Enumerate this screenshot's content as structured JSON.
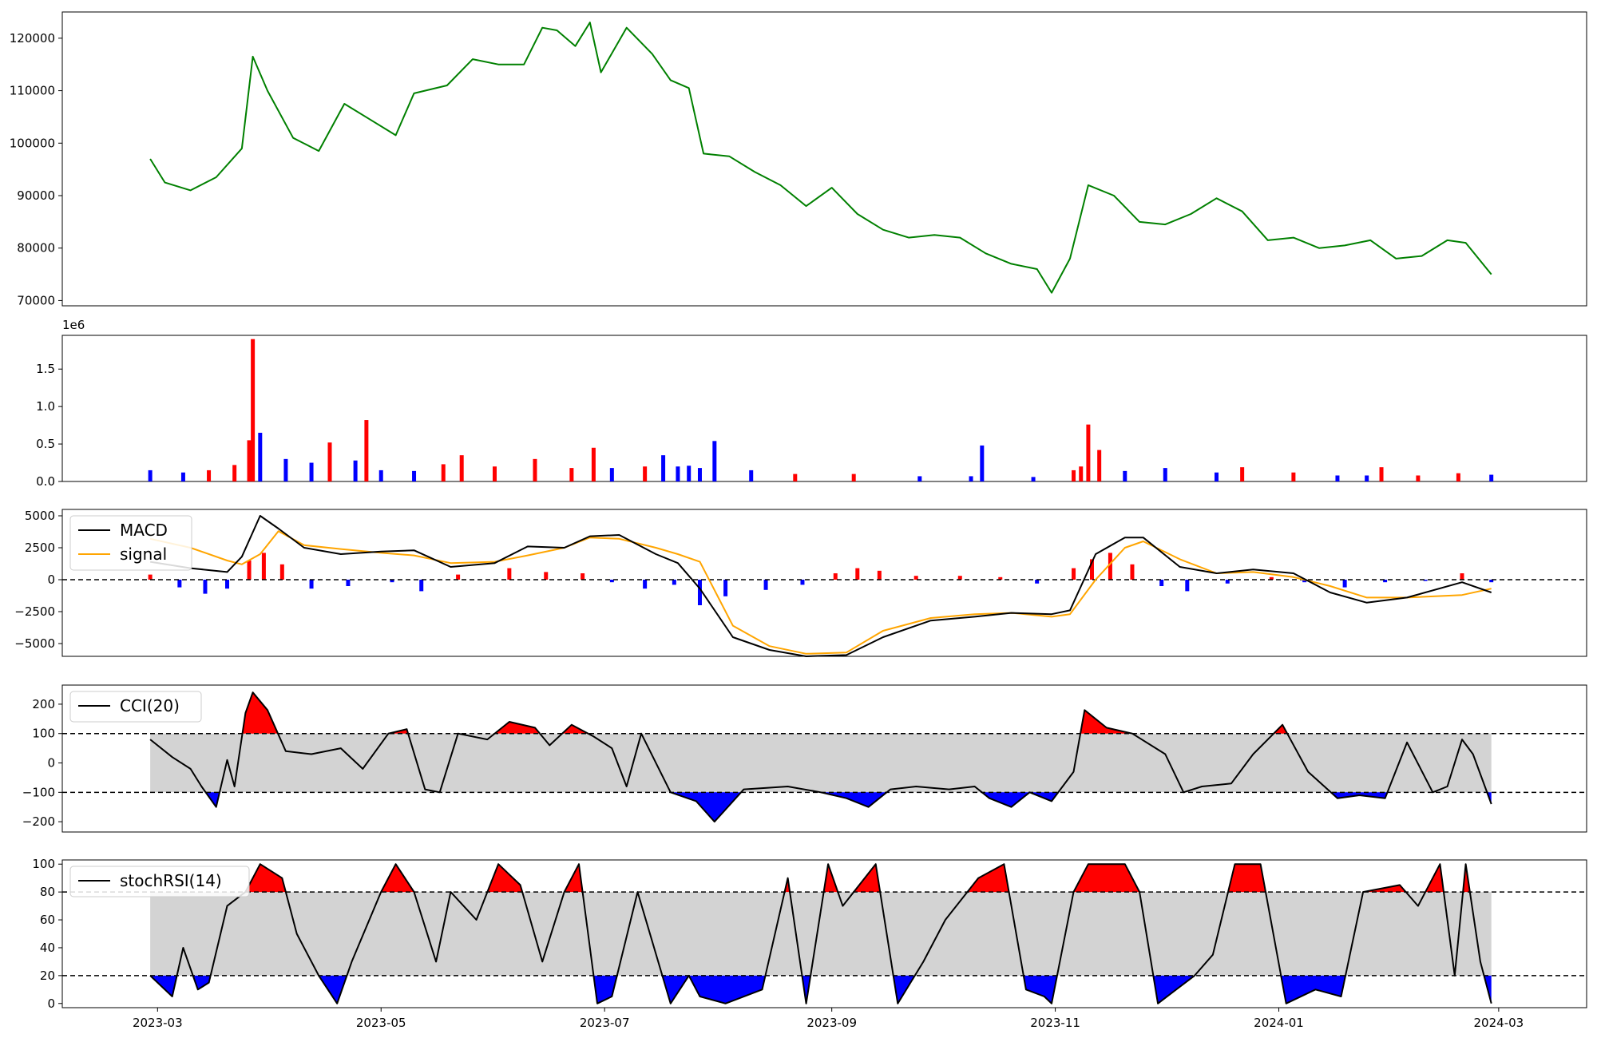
{
  "chart_data": [
    {
      "panel": "price",
      "type": "line",
      "color": "#008000",
      "ylim": [
        69000,
        125000
      ],
      "yticks": [
        70000,
        80000,
        90000,
        100000,
        110000,
        120000
      ],
      "ytick_labels": [
        "70000",
        "80000",
        "90000",
        "100000",
        "110000",
        "120000"
      ],
      "series": [
        {
          "x": [
            "2023-02-27",
            "2023-03-03",
            "2023-03-10",
            "2023-03-17",
            "2023-03-24",
            "2023-03-27",
            "2023-03-31",
            "2023-04-07",
            "2023-04-14",
            "2023-04-21",
            "2023-04-28",
            "2023-05-05",
            "2023-05-10",
            "2023-05-19",
            "2023-05-26",
            "2023-06-02",
            "2023-06-09",
            "2023-06-14",
            "2023-06-18",
            "2023-06-23",
            "2023-06-27",
            "2023-06-30",
            "2023-07-07",
            "2023-07-14",
            "2023-07-19",
            "2023-07-24",
            "2023-07-28",
            "2023-08-04",
            "2023-08-11",
            "2023-08-18",
            "2023-08-25",
            "2023-09-01",
            "2023-09-08",
            "2023-09-15",
            "2023-09-22",
            "2023-09-29",
            "2023-10-06",
            "2023-10-13",
            "2023-10-20",
            "2023-10-27",
            "2023-10-31",
            "2023-11-05",
            "2023-11-10",
            "2023-11-17",
            "2023-11-24",
            "2023-12-01",
            "2023-12-08",
            "2023-12-15",
            "2023-12-22",
            "2023-12-29",
            "2024-01-05",
            "2024-01-12",
            "2024-01-19",
            "2024-01-26",
            "2024-02-02",
            "2024-02-09",
            "2024-02-16",
            "2024-02-21",
            "2024-02-28"
          ],
          "y": [
            97000,
            92500,
            91000,
            93500,
            99000,
            116500,
            110000,
            101000,
            98500,
            107500,
            104500,
            101500,
            109500,
            111000,
            116000,
            115000,
            115000,
            122000,
            121500,
            118500,
            123000,
            113500,
            122000,
            117000,
            112000,
            110500,
            98000,
            97500,
            94500,
            92000,
            88000,
            91500,
            86500,
            83500,
            82000,
            82500,
            82000,
            79000,
            77000,
            76000,
            71500,
            78000,
            92000,
            90000,
            85000,
            84500,
            86500,
            89500,
            87000,
            81500,
            82000,
            80000,
            80500,
            81500,
            78000,
            78500,
            81500,
            81000,
            75000
          ]
        }
      ]
    },
    {
      "panel": "volume",
      "type": "bar",
      "offset_label": "1e6",
      "up_color": "#ff0000",
      "down_color": "#0000ff",
      "ylim": [
        0,
        1950000
      ],
      "yticks": [
        0,
        500000,
        1000000,
        1500000
      ],
      "ytick_labels": [
        "0.0",
        "0.5",
        "1.0",
        "1.5"
      ],
      "series": [
        {
          "x": [
            "2023-02-27",
            "2023-03-08",
            "2023-03-15",
            "2023-03-22",
            "2023-03-26",
            "2023-03-27",
            "2023-03-29",
            "2023-04-05",
            "2023-04-12",
            "2023-04-17",
            "2023-04-24",
            "2023-04-27",
            "2023-05-01",
            "2023-05-10",
            "2023-05-18",
            "2023-05-23",
            "2023-06-01",
            "2023-06-12",
            "2023-06-22",
            "2023-06-28",
            "2023-07-03",
            "2023-07-12",
            "2023-07-17",
            "2023-07-21",
            "2023-07-24",
            "2023-07-27",
            "2023-07-31",
            "2023-08-10",
            "2023-08-22",
            "2023-09-07",
            "2023-09-25",
            "2023-10-09",
            "2023-10-12",
            "2023-10-26",
            "2023-11-06",
            "2023-11-08",
            "2023-11-10",
            "2023-11-13",
            "2023-11-20",
            "2023-12-01",
            "2023-12-15",
            "2023-12-22",
            "2024-01-05",
            "2024-01-17",
            "2024-01-25",
            "2024-01-29",
            "2024-02-08",
            "2024-02-19",
            "2024-02-28"
          ],
          "values": [
            150000,
            120000,
            150000,
            220000,
            550000,
            1900000,
            650000,
            300000,
            250000,
            520000,
            280000,
            820000,
            150000,
            140000,
            230000,
            350000,
            200000,
            300000,
            180000,
            450000,
            180000,
            200000,
            350000,
            200000,
            210000,
            180000,
            540000,
            150000,
            100000,
            100000,
            70000,
            70000,
            480000,
            60000,
            150000,
            200000,
            760000,
            420000,
            140000,
            180000,
            120000,
            190000,
            120000,
            80000,
            80000,
            190000,
            80000,
            110000,
            90000
          ],
          "up": [
            false,
            false,
            true,
            true,
            true,
            true,
            false,
            false,
            false,
            true,
            false,
            true,
            false,
            false,
            true,
            true,
            true,
            true,
            true,
            true,
            false,
            true,
            false,
            false,
            false,
            false,
            false,
            false,
            true,
            true,
            false,
            false,
            false,
            false,
            true,
            true,
            true,
            true,
            false,
            false,
            false,
            true,
            true,
            false,
            false,
            true,
            true,
            true,
            false
          ]
        }
      ]
    },
    {
      "panel": "macd",
      "type": "line",
      "ylim": [
        -6000,
        5500
      ],
      "yticks": [
        -5000,
        -2500,
        0,
        2500,
        5000
      ],
      "ytick_labels": [
        "−5000",
        "−2500",
        "0",
        "2500",
        "5000"
      ],
      "legend": [
        "MACD",
        "signal"
      ],
      "legend_position": "upper-left",
      "reference_line": 0,
      "x": [
        "2023-02-27",
        "2023-03-10",
        "2023-03-20",
        "2023-03-24",
        "2023-03-29",
        "2023-04-03",
        "2023-04-10",
        "2023-04-20",
        "2023-05-01",
        "2023-05-10",
        "2023-05-20",
        "2023-06-01",
        "2023-06-10",
        "2023-06-20",
        "2023-06-27",
        "2023-07-05",
        "2023-07-15",
        "2023-07-21",
        "2023-07-27",
        "2023-08-05",
        "2023-08-15",
        "2023-08-25",
        "2023-09-05",
        "2023-09-15",
        "2023-09-28",
        "2023-10-10",
        "2023-10-20",
        "2023-10-31",
        "2023-11-05",
        "2023-11-12",
        "2023-11-20",
        "2023-11-25",
        "2023-12-05",
        "2023-12-15",
        "2023-12-25",
        "2024-01-05",
        "2024-01-15",
        "2024-01-25",
        "2024-02-05",
        "2024-02-20",
        "2024-02-28"
      ],
      "series": [
        {
          "name": "MACD",
          "color": "#000000",
          "values": [
            1400,
            900,
            600,
            1800,
            5000,
            4000,
            2500,
            2000,
            2200,
            2300,
            1000,
            1300,
            2600,
            2500,
            3400,
            3500,
            2000,
            1300,
            -700,
            -4500,
            -5500,
            -6000,
            -5900,
            -4500,
            -3200,
            -2900,
            -2600,
            -2700,
            -2400,
            2000,
            3300,
            3300,
            1000,
            500,
            800,
            500,
            -1000,
            -1800,
            -1400,
            -200,
            -1000
          ]
        },
        {
          "name": "signal",
          "color": "#ffa500",
          "values": [
            3200,
            2500,
            1500,
            1200,
            2000,
            3800,
            2700,
            2400,
            2100,
            1900,
            1300,
            1400,
            1900,
            2500,
            3300,
            3200,
            2500,
            2000,
            1400,
            -3600,
            -5200,
            -5800,
            -5700,
            -4000,
            -3000,
            -2700,
            -2600,
            -2900,
            -2700,
            0,
            2500,
            3000,
            1600,
            500,
            600,
            200,
            -500,
            -1400,
            -1400,
            -1200,
            -700
          ]
        }
      ],
      "histogram": {
        "positive_color": "#ff0000",
        "negative_color": "#0000ff",
        "x": [
          "2023-02-27",
          "2023-03-07",
          "2023-03-14",
          "2023-03-20",
          "2023-03-26",
          "2023-03-30",
          "2023-04-04",
          "2023-04-12",
          "2023-04-22",
          "2023-05-04",
          "2023-05-12",
          "2023-05-22",
          "2023-06-05",
          "2023-06-15",
          "2023-06-25",
          "2023-07-03",
          "2023-07-12",
          "2023-07-20",
          "2023-07-27",
          "2023-08-03",
          "2023-08-14",
          "2023-08-24",
          "2023-09-02",
          "2023-09-08",
          "2023-09-14",
          "2023-09-24",
          "2023-10-06",
          "2023-10-17",
          "2023-10-27",
          "2023-11-06",
          "2023-11-11",
          "2023-11-16",
          "2023-11-22",
          "2023-11-30",
          "2023-12-07",
          "2023-12-18",
          "2023-12-30",
          "2024-01-08",
          "2024-01-19",
          "2024-01-30",
          "2024-02-10",
          "2024-02-20",
          "2024-02-28"
        ],
        "values": [
          400,
          -600,
          -1100,
          -700,
          1500,
          2100,
          1200,
          -700,
          -500,
          -200,
          -900,
          400,
          900,
          600,
          500,
          -200,
          -700,
          -400,
          -2000,
          -1300,
          -800,
          -400,
          500,
          900,
          700,
          300,
          300,
          200,
          -300,
          900,
          1600,
          2100,
          1200,
          -500,
          -900,
          -300,
          200,
          -200,
          -600,
          -200,
          -100,
          500,
          -200
        ]
      }
    },
    {
      "panel": "cci",
      "type": "line",
      "color": "#000000",
      "ylim": [
        -235,
        265
      ],
      "yticks": [
        -200,
        -100,
        0,
        100,
        200
      ],
      "ytick_labels": [
        "−200",
        "−100",
        "0",
        "100",
        "200"
      ],
      "legend": [
        "CCI(20)"
      ],
      "legend_position": "upper-left",
      "band": [
        -100,
        100
      ],
      "band_color": "#d3d3d3",
      "above_color": "#ff0000",
      "below_color": "#0000ff",
      "series": [
        {
          "name": "CCI(20)",
          "x": [
            "2023-02-27",
            "2023-03-05",
            "2023-03-10",
            "2023-03-13",
            "2023-03-17",
            "2023-03-20",
            "2023-03-22",
            "2023-03-25",
            "2023-03-27",
            "2023-03-31",
            "2023-04-05",
            "2023-04-12",
            "2023-04-20",
            "2023-04-26",
            "2023-05-03",
            "2023-05-08",
            "2023-05-13",
            "2023-05-17",
            "2023-05-22",
            "2023-05-30",
            "2023-06-05",
            "2023-06-12",
            "2023-06-16",
            "2023-06-22",
            "2023-06-28",
            "2023-07-03",
            "2023-07-07",
            "2023-07-11",
            "2023-07-19",
            "2023-07-26",
            "2023-07-31",
            "2023-08-08",
            "2023-08-20",
            "2023-08-29",
            "2023-09-05",
            "2023-09-11",
            "2023-09-17",
            "2023-09-24",
            "2023-10-03",
            "2023-10-10",
            "2023-10-14",
            "2023-10-20",
            "2023-10-25",
            "2023-10-31",
            "2023-11-06",
            "2023-11-09",
            "2023-11-15",
            "2023-11-22",
            "2023-12-01",
            "2023-12-06",
            "2023-12-11",
            "2023-12-19",
            "2023-12-25",
            "2024-01-02",
            "2024-01-09",
            "2024-01-17",
            "2024-01-23",
            "2024-01-30",
            "2024-02-05",
            "2024-02-12",
            "2024-02-16",
            "2024-02-20",
            "2024-02-23",
            "2024-02-28"
          ],
          "y": [
            80,
            20,
            -20,
            -80,
            -150,
            10,
            -80,
            170,
            240,
            180,
            40,
            30,
            50,
            -20,
            100,
            115,
            -90,
            -100,
            100,
            80,
            140,
            120,
            60,
            130,
            90,
            50,
            -80,
            100,
            -100,
            -130,
            -200,
            -90,
            -80,
            -100,
            -120,
            -150,
            -90,
            -80,
            -90,
            -80,
            -120,
            -150,
            -100,
            -130,
            -30,
            180,
            120,
            100,
            30,
            -100,
            -80,
            -70,
            30,
            130,
            -30,
            -120,
            -110,
            -120,
            70,
            -100,
            -80,
            80,
            30,
            -140
          ]
        }
      ]
    },
    {
      "panel": "stochrsi",
      "type": "line",
      "color": "#000000",
      "ylim": [
        -3,
        103
      ],
      "yticks": [
        0,
        20,
        40,
        60,
        80,
        100
      ],
      "ytick_labels": [
        "0",
        "20",
        "40",
        "60",
        "80",
        "100"
      ],
      "legend": [
        "stochRSI(14)"
      ],
      "legend_position": "upper-left",
      "band": [
        20,
        80
      ],
      "band_color": "#d3d3d3",
      "above_color": "#ff0000",
      "below_color": "#0000ff",
      "series": [
        {
          "name": "stochRSI(14)",
          "x": [
            "2023-02-27",
            "2023-03-05",
            "2023-03-08",
            "2023-03-12",
            "2023-03-15",
            "2023-03-20",
            "2023-03-25",
            "2023-03-29",
            "2023-04-04",
            "2023-04-08",
            "2023-04-14",
            "2023-04-19",
            "2023-04-23",
            "2023-05-01",
            "2023-05-05",
            "2023-05-10",
            "2023-05-16",
            "2023-05-20",
            "2023-05-27",
            "2023-06-02",
            "2023-06-08",
            "2023-06-14",
            "2023-06-20",
            "2023-06-24",
            "2023-06-29",
            "2023-07-03",
            "2023-07-10",
            "2023-07-19",
            "2023-07-24",
            "2023-07-27",
            "2023-08-03",
            "2023-08-13",
            "2023-08-20",
            "2023-08-25",
            "2023-08-31",
            "2023-09-04",
            "2023-09-13",
            "2023-09-19",
            "2023-09-26",
            "2023-10-02",
            "2023-10-11",
            "2023-10-18",
            "2023-10-24",
            "2023-10-29",
            "2023-10-31",
            "2023-11-06",
            "2023-11-10",
            "2023-11-20",
            "2023-11-24",
            "2023-11-29",
            "2023-12-04",
            "2023-12-09",
            "2023-12-14",
            "2023-12-20",
            "2023-12-27",
            "2024-01-03",
            "2024-01-11",
            "2024-01-18",
            "2024-01-24",
            "2024-02-03",
            "2024-02-08",
            "2024-02-14",
            "2024-02-18",
            "2024-02-21",
            "2024-02-25",
            "2024-02-28"
          ],
          "y": [
            20,
            5,
            40,
            10,
            15,
            70,
            80,
            100,
            90,
            50,
            20,
            0,
            30,
            80,
            100,
            80,
            30,
            80,
            60,
            100,
            85,
            30,
            80,
            100,
            0,
            5,
            80,
            0,
            20,
            5,
            0,
            10,
            90,
            0,
            100,
            70,
            100,
            0,
            30,
            60,
            90,
            100,
            10,
            5,
            0,
            80,
            100,
            100,
            80,
            0,
            10,
            20,
            35,
            100,
            100,
            0,
            10,
            5,
            80,
            85,
            70,
            100,
            20,
            100,
            30,
            0
          ]
        }
      ]
    }
  ],
  "shared_x_axis": {
    "tick_labels": [
      "2023-03",
      "2023-05",
      "2023-07",
      "2023-09",
      "2023-11",
      "2024-01",
      "2024-03"
    ],
    "tick_dates": [
      "2023-03-01",
      "2023-05-01",
      "2023-07-01",
      "2023-09-01",
      "2023-11-01",
      "2024-01-01",
      "2024-03-01"
    ],
    "xlim": [
      "2023-02-03",
      "2024-03-25"
    ]
  }
}
